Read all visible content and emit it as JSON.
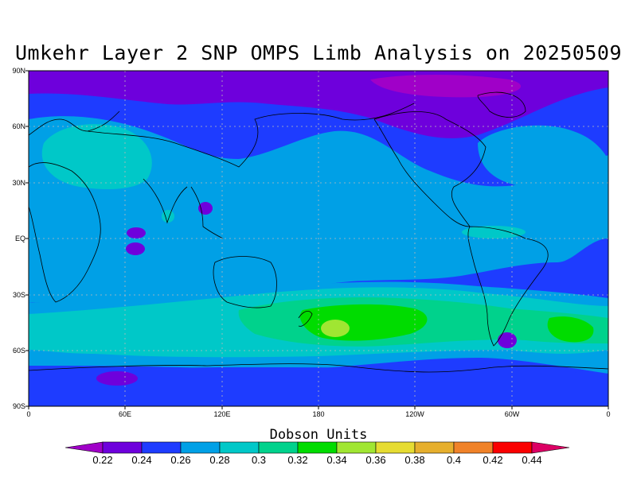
{
  "title": "Umkehr Layer 2 SNP OMPS Limb Analysis on 20250509",
  "colorbar": {
    "title": "Dobson Units",
    "levels": [
      "0.22",
      "0.24",
      "0.26",
      "0.28",
      "0.3",
      "0.32",
      "0.34",
      "0.36",
      "0.38",
      "0.4",
      "0.42",
      "0.44"
    ],
    "colors": [
      "#a000c8",
      "#6e00dc",
      "#1e3cff",
      "#00a0e6",
      "#00c8c8",
      "#00d28c",
      "#00dc00",
      "#a0e632",
      "#e6dc32",
      "#e6af2d",
      "#f08228",
      "#fa0000",
      "#dc0064"
    ]
  },
  "axes": {
    "lat_labels": [
      "90N",
      "60N",
      "30N",
      "EQ",
      "30S",
      "60S",
      "90S"
    ],
    "lon_labels": [
      "0",
      "60E",
      "120E",
      "180",
      "120W",
      "60W",
      "0"
    ]
  },
  "map": {
    "type": "filled-contour",
    "projection": "equirectangular",
    "lon_range": [
      0,
      360
    ],
    "lat_range": [
      -90,
      90
    ],
    "grid": "dotted"
  }
}
